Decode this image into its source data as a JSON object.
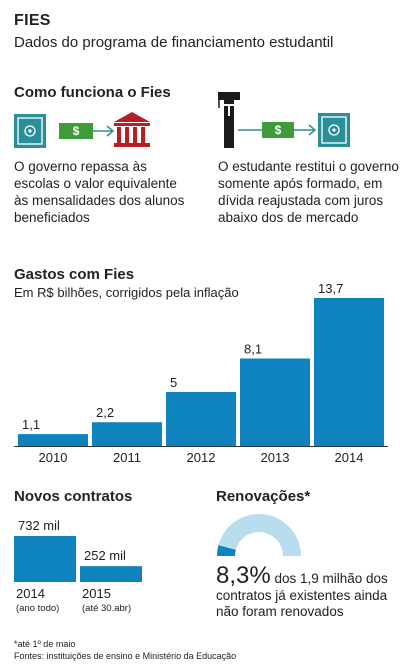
{
  "header": {
    "title": "FIES",
    "subtitle": "Dados do programa de financiamento estudantil"
  },
  "how": {
    "heading": "Como funciona o Fies",
    "left_text": "O governo repassa às escolas o valor equivalente às mensalidades dos alunos beneficiados",
    "right_text": "O estudante restitui o governo somente após formado, em dívida reajustada com juros abaixo dos de mercado",
    "icons": [
      "safe-icon",
      "money-icon",
      "arrow-icon",
      "school-building-icon",
      "graduate-icon"
    ],
    "colors": {
      "teal": "#2a8f99",
      "green": "#3e9b3a",
      "red": "#b81e23",
      "dark": "#1a1a1a"
    }
  },
  "spending": {
    "heading": "Gastos com Fies",
    "subheading": "Em R$ bilhões, corrigidos pela inflação"
  },
  "new_contracts": {
    "heading": "Novos contratos",
    "items": [
      {
        "year": "2014",
        "note": "(ano todo)",
        "value_label": "732 mil",
        "value": 732
      },
      {
        "year": "2015",
        "note": "(até 30.abr)",
        "value_label": "252 mil",
        "value": 252
      }
    ]
  },
  "renewals": {
    "heading": "Renovações*",
    "percent_label": "8,3%",
    "percent": 8.3,
    "text": "dos 1,9 milhão dos contratos já existentes ainda não foram renovados"
  },
  "footnotes": {
    "note": "*até 1º de maio",
    "source": "Fontes: instituições de ensino e Ministério da Educação"
  },
  "chart_data": [
    {
      "type": "bar",
      "categories": [
        "2010",
        "2011",
        "2012",
        "2013",
        "2014"
      ],
      "values": [
        1.1,
        2.2,
        5,
        8.1,
        13.7
      ],
      "value_labels": [
        "1,1",
        "2,2",
        "5",
        "8,1",
        "13,7"
      ],
      "title": "Gastos com Fies",
      "subtitle": "Em R$ bilhões, corrigidos pela inflação",
      "color": "#0f83bd"
    },
    {
      "type": "bar",
      "categories": [
        "2014",
        "2015"
      ],
      "values": [
        732,
        252
      ],
      "value_labels": [
        "732 mil",
        "252 mil"
      ],
      "title": "Novos contratos",
      "color": "#0f83bd"
    },
    {
      "type": "pie",
      "values": [
        8.3,
        91.7
      ],
      "value_labels": [
        "8,3%"
      ],
      "title": "Renovações*",
      "colors": [
        "#0f83bd",
        "#b9ddef"
      ]
    }
  ]
}
